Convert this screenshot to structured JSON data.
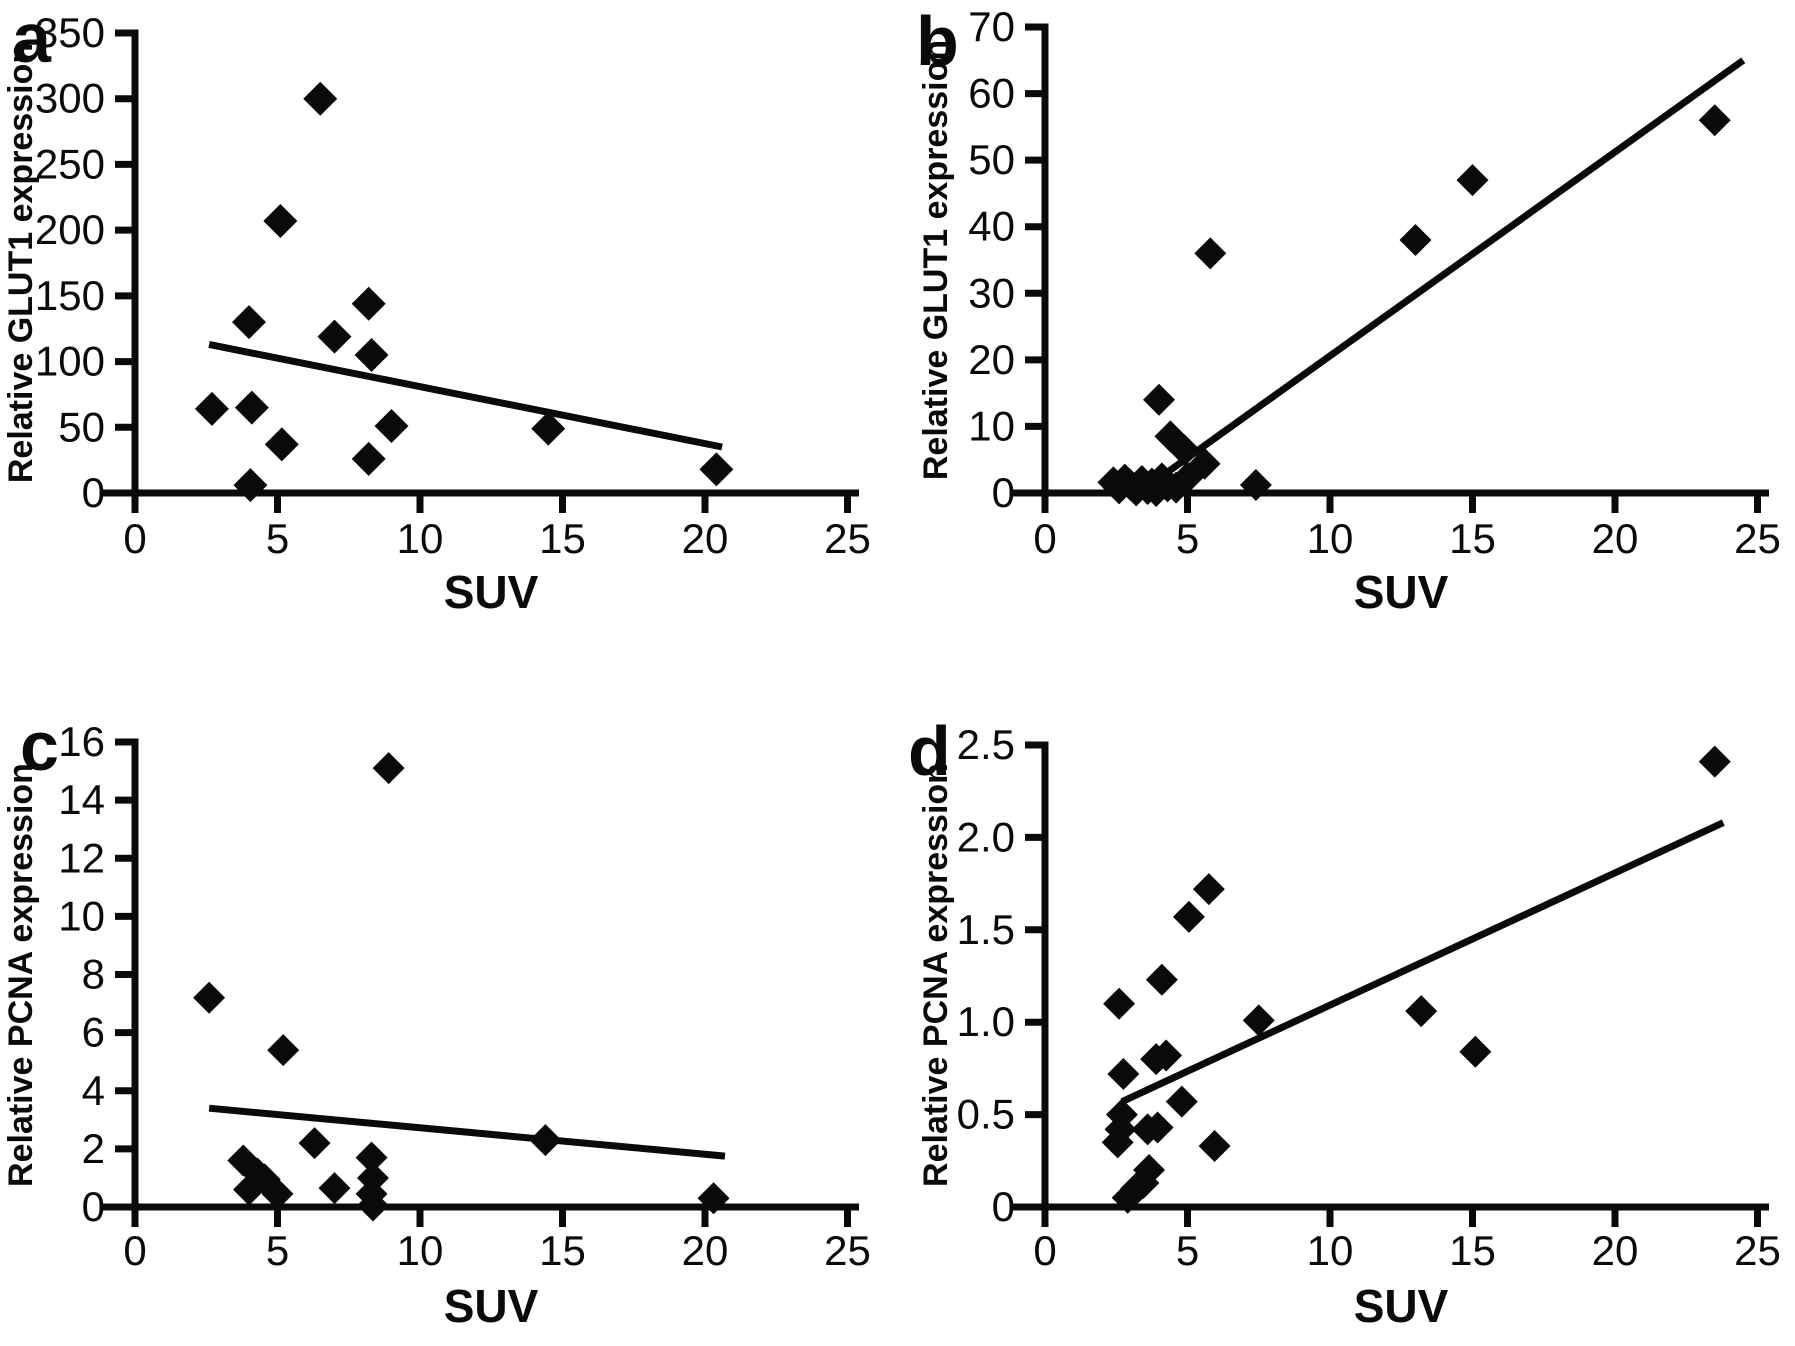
{
  "figure": {
    "background_color": "#ffffff",
    "ink_color": "#0a0a0a",
    "panel_letters": [
      "a",
      "b",
      "c",
      "d"
    ]
  },
  "chart_data": [
    {
      "type": "scatter",
      "panel_label": "a",
      "xlabel": "SUV",
      "ylabel": "Relative GLUT1 expression",
      "xlim": [
        0,
        25
      ],
      "ylim": [
        0,
        350
      ],
      "xticks": [
        0,
        5,
        10,
        15,
        20,
        25
      ],
      "yticks": [
        0,
        50,
        100,
        150,
        200,
        250,
        300,
        350
      ],
      "xtick_labels": [
        "0",
        "5",
        "10",
        "15",
        "20",
        "25"
      ],
      "ytick_labels": [
        "0",
        "50",
        "100",
        "150",
        "200",
        "250",
        "300",
        "350"
      ],
      "grid": false,
      "legend": "none",
      "marker": "filled-diamond",
      "marker_color": "#0a0a0a",
      "points": [
        [
          2.7,
          64
        ],
        [
          4.0,
          130
        ],
        [
          4.1,
          65
        ],
        [
          4.05,
          6
        ],
        [
          5.1,
          207
        ],
        [
          5.15,
          37
        ],
        [
          6.5,
          300
        ],
        [
          7.0,
          119
        ],
        [
          8.2,
          144
        ],
        [
          8.3,
          105
        ],
        [
          8.2,
          26
        ],
        [
          9.0,
          51
        ],
        [
          14.5,
          49
        ],
        [
          20.4,
          18
        ]
      ],
      "trendline": {
        "x1": 2.6,
        "y1": 113,
        "x2": 20.6,
        "y2": 35
      }
    },
    {
      "type": "scatter",
      "panel_label": "b",
      "xlabel": "SUV",
      "ylabel": "Relative GLUT1 expression",
      "xlim": [
        0,
        25
      ],
      "ylim": [
        0,
        70
      ],
      "xticks": [
        0,
        5,
        10,
        15,
        20,
        25
      ],
      "yticks": [
        0,
        10,
        20,
        30,
        40,
        50,
        60,
        70
      ],
      "xtick_labels": [
        "0",
        "5",
        "10",
        "15",
        "20",
        "25"
      ],
      "ytick_labels": [
        "0",
        "10",
        "20",
        "30",
        "40",
        "50",
        "60",
        "70"
      ],
      "grid": false,
      "legend": "none",
      "marker": "filled-diamond",
      "marker_color": "#0a0a0a",
      "points": [
        [
          2.4,
          1.6
        ],
        [
          2.6,
          0.7
        ],
        [
          2.8,
          2.0
        ],
        [
          3.0,
          1.2
        ],
        [
          3.2,
          0.4
        ],
        [
          3.4,
          1.8
        ],
        [
          3.6,
          0.6
        ],
        [
          3.75,
          1.4
        ],
        [
          3.9,
          0.3
        ],
        [
          4.1,
          2.2
        ],
        [
          4.3,
          1.0
        ],
        [
          4.6,
          0.8
        ],
        [
          5.0,
          2.3
        ],
        [
          4.0,
          14
        ],
        [
          4.4,
          8.5
        ],
        [
          4.9,
          6.4
        ],
        [
          5.6,
          4.4
        ],
        [
          5.8,
          36
        ],
        [
          7.4,
          1.2
        ],
        [
          13.0,
          38
        ],
        [
          15.0,
          47
        ],
        [
          23.5,
          56
        ]
      ],
      "trendline": {
        "x1": 3.6,
        "y1": 1,
        "x2": 24.5,
        "y2": 65
      }
    },
    {
      "type": "scatter",
      "panel_label": "c",
      "xlabel": "SUV",
      "ylabel": "Relative PCNA expression",
      "xlim": [
        0,
        25
      ],
      "ylim": [
        0,
        16
      ],
      "xticks": [
        0,
        5,
        10,
        15,
        20,
        25
      ],
      "yticks": [
        0,
        2,
        4,
        6,
        8,
        10,
        12,
        14,
        16
      ],
      "xtick_labels": [
        "0",
        "5",
        "10",
        "15",
        "20",
        "25"
      ],
      "ytick_labels": [
        "0",
        "2",
        "4",
        "6",
        "8",
        "10",
        "12",
        "14",
        "16"
      ],
      "grid": false,
      "legend": "none",
      "marker": "filled-diamond",
      "marker_color": "#0a0a0a",
      "points": [
        [
          2.6,
          7.2
        ],
        [
          3.8,
          1.6
        ],
        [
          4.0,
          0.6
        ],
        [
          4.3,
          1.15
        ],
        [
          4.55,
          0.95
        ],
        [
          5.0,
          0.45
        ],
        [
          5.2,
          5.4
        ],
        [
          6.3,
          2.2
        ],
        [
          7.0,
          0.65
        ],
        [
          8.3,
          1.7
        ],
        [
          8.35,
          1.0
        ],
        [
          8.3,
          0.45
        ],
        [
          8.35,
          0.05
        ],
        [
          8.9,
          15.1
        ],
        [
          14.4,
          2.3
        ],
        [
          20.3,
          0.3
        ]
      ],
      "trendline": {
        "x1": 2.6,
        "y1": 3.4,
        "x2": 20.7,
        "y2": 1.75
      }
    },
    {
      "type": "scatter",
      "panel_label": "d",
      "xlabel": "SUV",
      "ylabel": "Relative PCNA expression",
      "xlim": [
        0,
        25
      ],
      "ylim": [
        0,
        2.5
      ],
      "xticks": [
        0,
        5,
        10,
        15,
        20,
        25
      ],
      "yticks": [
        0,
        0.5,
        1.0,
        1.5,
        2.0,
        2.5
      ],
      "xtick_labels": [
        "0",
        "5",
        "10",
        "15",
        "20",
        "25"
      ],
      "ytick_labels": [
        "0",
        "0.5",
        "1.0",
        "1.5",
        "2.0",
        "2.5"
      ],
      "grid": false,
      "legend": "none",
      "marker": "filled-diamond",
      "marker_color": "#0a0a0a",
      "points": [
        [
          2.6,
          1.1
        ],
        [
          2.75,
          0.72
        ],
        [
          2.7,
          0.5
        ],
        [
          2.65,
          0.42
        ],
        [
          2.55,
          0.35
        ],
        [
          2.9,
          0.05
        ],
        [
          3.2,
          0.1
        ],
        [
          3.45,
          0.13
        ],
        [
          3.65,
          0.2
        ],
        [
          3.6,
          0.42
        ],
        [
          3.95,
          0.43
        ],
        [
          3.9,
          0.8
        ],
        [
          4.25,
          0.82
        ],
        [
          4.1,
          1.23
        ],
        [
          4.8,
          0.57
        ],
        [
          5.05,
          1.57
        ],
        [
          5.75,
          1.72
        ],
        [
          5.95,
          0.33
        ],
        [
          7.5,
          1.01
        ],
        [
          13.2,
          1.06
        ],
        [
          15.1,
          0.84
        ],
        [
          23.5,
          2.41
        ]
      ],
      "trendline": {
        "x1": 2.7,
        "y1": 0.57,
        "x2": 23.8,
        "y2": 2.08
      }
    }
  ]
}
